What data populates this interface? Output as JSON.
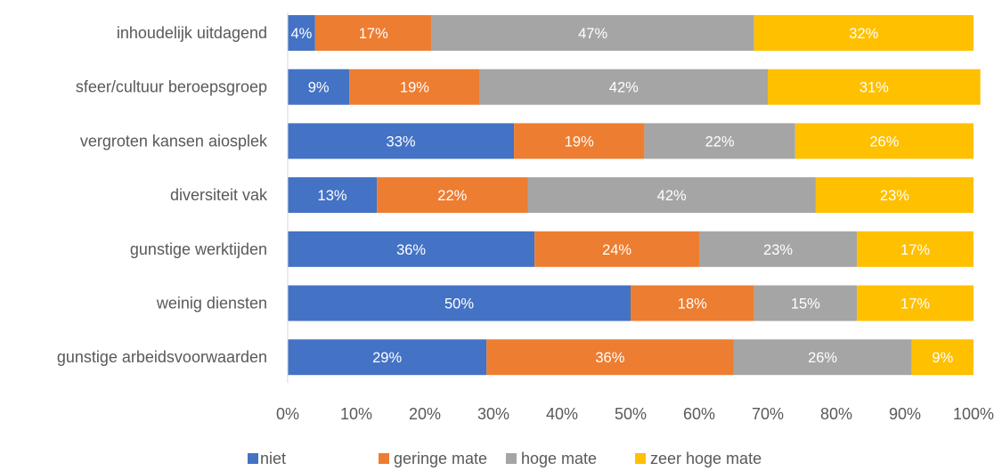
{
  "chart_data": {
    "type": "bar",
    "orientation": "horizontal",
    "stacked": true,
    "percent_stacked": true,
    "title": "",
    "xlabel": "",
    "ylabel": "",
    "xlim": [
      0,
      100
    ],
    "x_ticks": [
      "0%",
      "10%",
      "20%",
      "30%",
      "40%",
      "50%",
      "60%",
      "70%",
      "80%",
      "90%",
      "100%"
    ],
    "grid": false,
    "legend_position": "bottom",
    "categories": [
      "inhoudelijk uitdagend",
      "sfeer/cultuur beroepsgroep",
      "vergroten kansen aiosplek",
      "diversiteit vak",
      "gunstige werktijden",
      "weinig diensten",
      "gunstige arbeidsvoorwaarden"
    ],
    "series": [
      {
        "name": "niet",
        "color": "#4472C4",
        "values": [
          4,
          9,
          33,
          13,
          36,
          50,
          29
        ]
      },
      {
        "name": "geringe mate",
        "color": "#ED7D31",
        "values": [
          17,
          19,
          19,
          22,
          24,
          18,
          36
        ]
      },
      {
        "name": "hoge mate",
        "color": "#A5A5A5",
        "values": [
          47,
          42,
          22,
          42,
          23,
          15,
          26
        ]
      },
      {
        "name": "zeer hoge mate",
        "color": "#FFC000",
        "values": [
          32,
          31,
          26,
          23,
          17,
          17,
          9
        ]
      }
    ],
    "data_label_color": "#ffffff",
    "text_color": "#595959",
    "axis_color": "#D9D9D9"
  }
}
